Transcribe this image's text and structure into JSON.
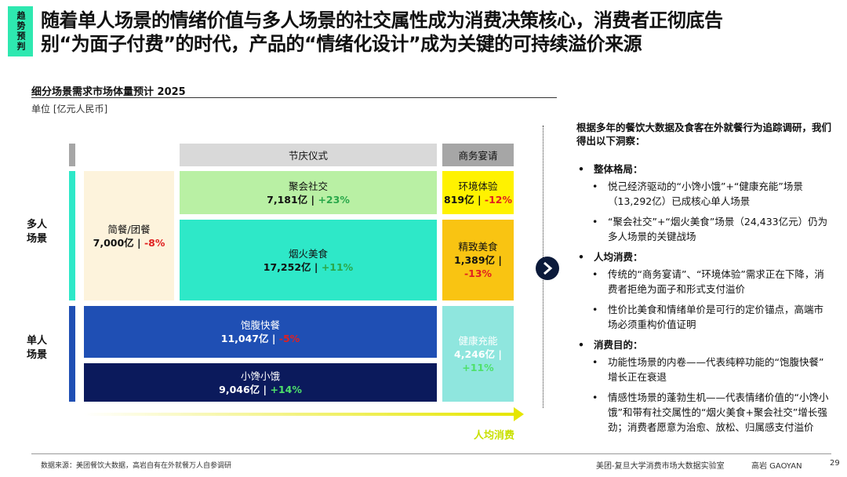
{
  "header": {
    "tag": "趋势预判",
    "title_lines": [
      "随着单人场景的情绪价值与多人场景的社交属性成为消费决策核心，消费者正彻底告",
      "别“为面子付费”的时代，产品的“情绪化设计”成为关键的可持续溢价来源"
    ]
  },
  "chart": {
    "title": "细分场景需求市场体量预计 2025",
    "unit": "单位 [亿元人民币]",
    "columns": [
      "节庆仪式",
      "商务宴请"
    ],
    "rows": [
      "多人场景",
      "单人场景"
    ],
    "tiles": [
      {
        "name": "简餐/团餐",
        "amount": "7,000亿",
        "change": "-8%",
        "color": "#fdf3dc"
      },
      {
        "name": "聚会社交",
        "amount": "7,181亿",
        "change": "+23%",
        "color": "#b9f0a4"
      },
      {
        "name": "烟火美食",
        "amount": "17,252亿",
        "change": "+11%",
        "color": "#2ee8c8"
      },
      {
        "name": "环境体验",
        "amount": "819亿",
        "change": "-12%",
        "color": "#fff200"
      },
      {
        "name": "精致美食",
        "amount": "1,389亿",
        "change": "-13%",
        "color": "#f9c412"
      },
      {
        "name": "饱腹快餐",
        "amount": "11,047亿",
        "change": "-5%",
        "color": "#1f4fb4"
      },
      {
        "name": "小馋小饿",
        "amount": "9,046亿",
        "change": "+14%",
        "color": "#0b1a5c"
      },
      {
        "name": "健康充能",
        "amount": "4,246亿",
        "change": "+11%",
        "color": "#8fe6de"
      }
    ],
    "x_label": "人均消费"
  },
  "insights": {
    "intro": "根据多年的餐饮大数据及食客在外就餐行为追踪调研，我们得出以下洞察：",
    "sections": [
      {
        "heading": "整体格局：",
        "items": [
          "悦己经济驱动的“小馋小饿”+“健康充能”场景（13,292亿）已成核心单人场景",
          "“聚会社交”+“烟火美食”场景（24,433亿元）仍为多人场景的关键战场"
        ]
      },
      {
        "heading": "人均消费：",
        "items": [
          "传统的“商务宴请”、“环境体验”需求正在下降，消费者拒绝为面子和形式支付溢价",
          "性价比美食和情绪单价是可行的定价锚点，高端市场必须重构价值证明"
        ]
      },
      {
        "heading": "消费目的：",
        "items": [
          "功能性场景的内卷——代表纯粹功能的“饱腹快餐”增长正在衰退",
          "情感性场景的蓬勃生机——代表情绪价值的“小馋小饿”和带有社交属性的“烟火美食+聚会社交”增长强劲；消费者愿意为治愈、放松、归属感支付溢价"
        ]
      }
    ]
  },
  "footer": {
    "source": "数据来源：美团餐饮大数据，高岩自有在外就餐万人自参调研",
    "org": "美团-复旦大学消费市场大数据实验室",
    "brand": "高岩 GAOYAN",
    "page": "29"
  }
}
